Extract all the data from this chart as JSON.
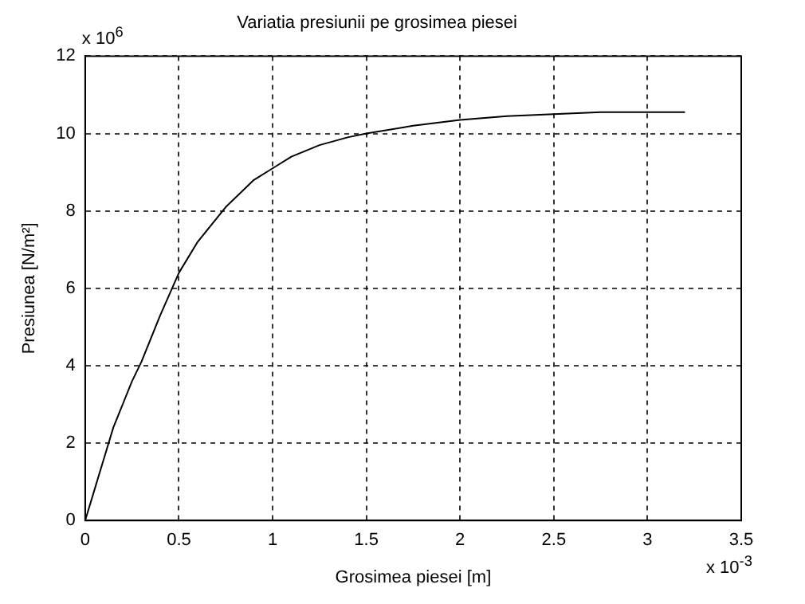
{
  "chart_data": {
    "type": "line",
    "title": "Variatia presiunii pe grosimea piesei",
    "xlabel": "Grosimea piesei [m]",
    "ylabel": "Presiunea [N/m²]",
    "annotations": [
      "x 10$^{6}$",
      "x 10$^{-3}$"
    ],
    "series": [
      {
        "color": "#000000",
        "x": [
          0,
          0.05,
          0.1,
          0.15,
          0.2,
          0.25,
          0.3,
          0.4,
          0.5,
          0.6,
          0.75,
          0.9,
          1.0,
          1.1,
          1.25,
          1.4,
          1.5,
          1.75,
          2.0,
          2.25,
          2.5,
          2.75,
          3.0,
          3.2
        ],
        "values": [
          0,
          0.8,
          1.6,
          2.4,
          3.0,
          3.6,
          4.1,
          5.3,
          6.4,
          7.2,
          8.1,
          8.8,
          9.1,
          9.4,
          9.7,
          9.9,
          10.0,
          10.2,
          10.35,
          10.45,
          10.5,
          10.55,
          10.55,
          10.55
        ]
      }
    ],
    "xlim": [
      0,
      3.5
    ],
    "xticks": [
      0,
      0.5,
      1,
      1.5,
      2,
      2.5,
      3,
      3.5
    ],
    "ylim": [
      0,
      12
    ],
    "yticks": [
      0,
      2,
      4,
      6,
      8,
      10,
      12
    ],
    "grid": true,
    "legend": false,
    "marker": "none",
    "line_style": "solid"
  }
}
